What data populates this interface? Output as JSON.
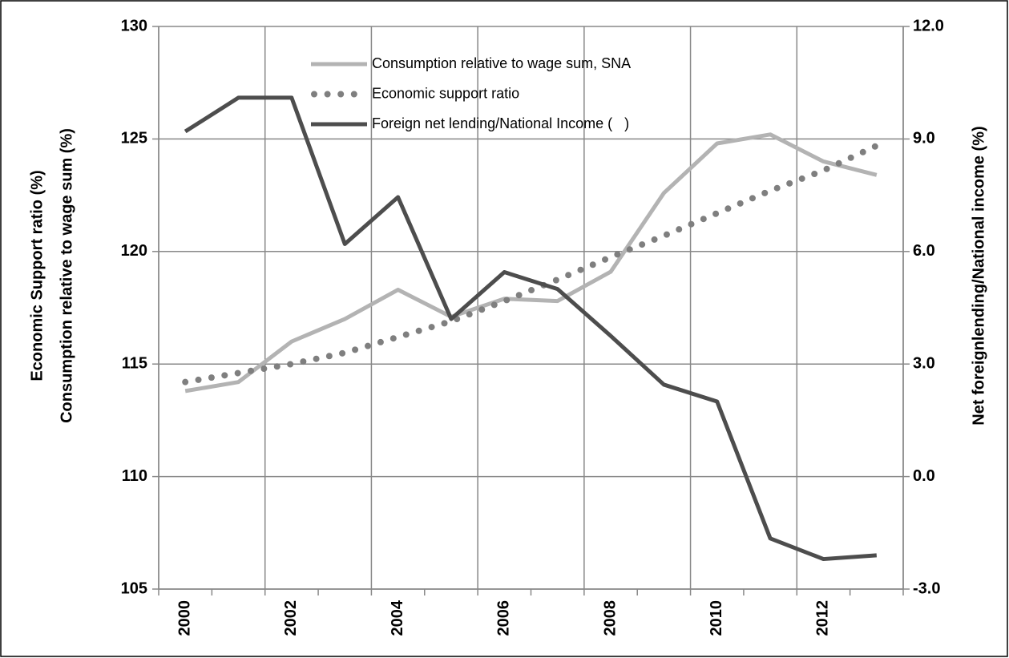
{
  "chart_data": {
    "type": "line",
    "categories": [
      "2000",
      null,
      "2002",
      null,
      "2004",
      null,
      "2006",
      null,
      "2008",
      null,
      "2010",
      null,
      "2012",
      null
    ],
    "y_label": [
      "Economic Support ratio (%)",
      "Consumption relative to wage sum (%)"
    ],
    "y2_label": "Net foreignlending/National income (%)",
    "ylim": [
      105,
      130
    ],
    "yticks": [
      105,
      110,
      115,
      120,
      125,
      130
    ],
    "y2lim": [
      -3,
      12
    ],
    "y2ticks": [
      {
        "value": -3,
        "label": "-3.0"
      },
      {
        "value": 0,
        "label": "0.0"
      },
      {
        "value": 3,
        "label": "3.0"
      },
      {
        "value": 6,
        "label": "6.0"
      },
      {
        "value": 9,
        "label": "9.0"
      },
      {
        "value": 12,
        "label": "12.0"
      }
    ],
    "grid": true,
    "legend": "top",
    "series": [
      {
        "name": "Consumption relative to wage sum, SNA",
        "color": "#b3b3b3",
        "style": "solid",
        "values": [
          113.8,
          114.2,
          116.0,
          117.0,
          118.3,
          117.1,
          117.9,
          117.8,
          119.1,
          122.6,
          124.8,
          125.2,
          124.0,
          123.4
        ]
      },
      {
        "name": "Economic support ratio",
        "color": "#7f7f7f",
        "style": "dotted",
        "values": [
          114.2,
          114.6,
          115.0,
          115.5,
          116.2,
          116.9,
          117.8,
          118.75,
          119.75,
          120.7,
          121.7,
          122.7,
          123.6,
          124.7
        ]
      },
      {
        "name": "Foreign net lending/National Income (   )",
        "color": "#4d4d4d",
        "style": "solid",
        "axis": "y2",
        "values": [
          9.2,
          10.1,
          10.1,
          6.2,
          7.45,
          4.2,
          5.45,
          5.0,
          3.75,
          2.45,
          2.0,
          -1.65,
          -2.2,
          -2.1
        ]
      }
    ]
  }
}
